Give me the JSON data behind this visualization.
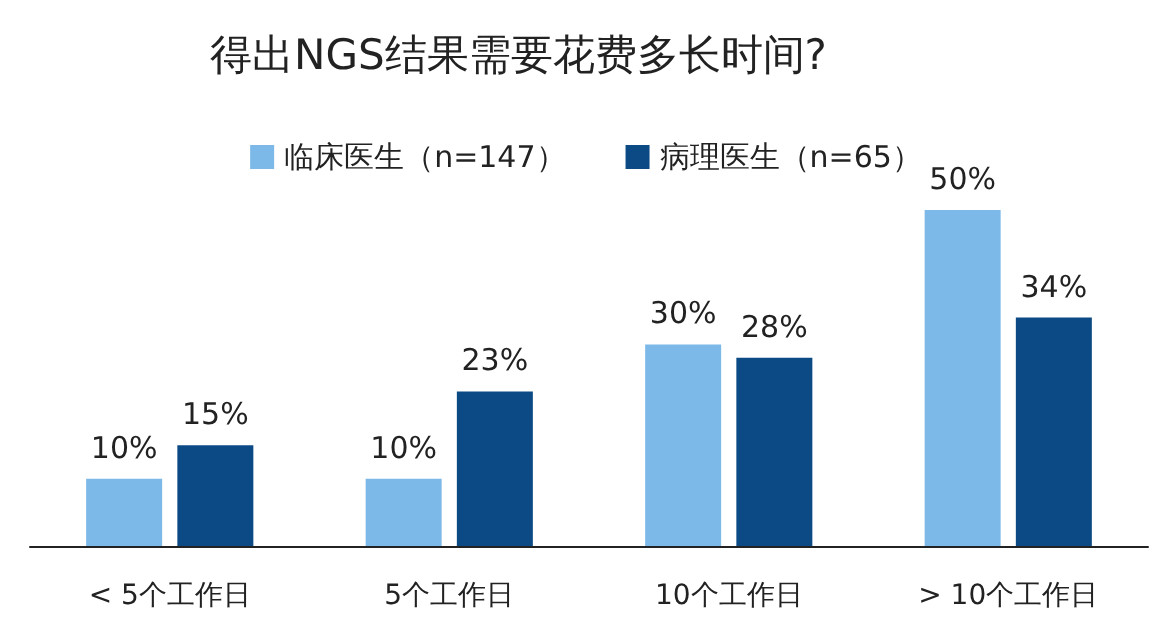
{
  "chart_data": {
    "type": "bar",
    "title": "得出NGS结果需要花费多长时间?",
    "categories": [
      "< 5个工作日",
      "5个工作日",
      "10个工作日",
      "> 10个工作日"
    ],
    "series": [
      {
        "name": "临床医生（n=147）",
        "color": "#7cb9e8",
        "values": [
          10,
          10,
          30,
          50
        ],
        "value_labels": [
          "10%",
          "10%",
          "30%",
          "50%"
        ]
      },
      {
        "name": "病理医生（n=65）",
        "color": "#0b4a84",
        "values": [
          15,
          23,
          28,
          34
        ],
        "value_labels": [
          "15%",
          "23%",
          "28%",
          "34%"
        ]
      }
    ],
    "legend": "top"
  }
}
